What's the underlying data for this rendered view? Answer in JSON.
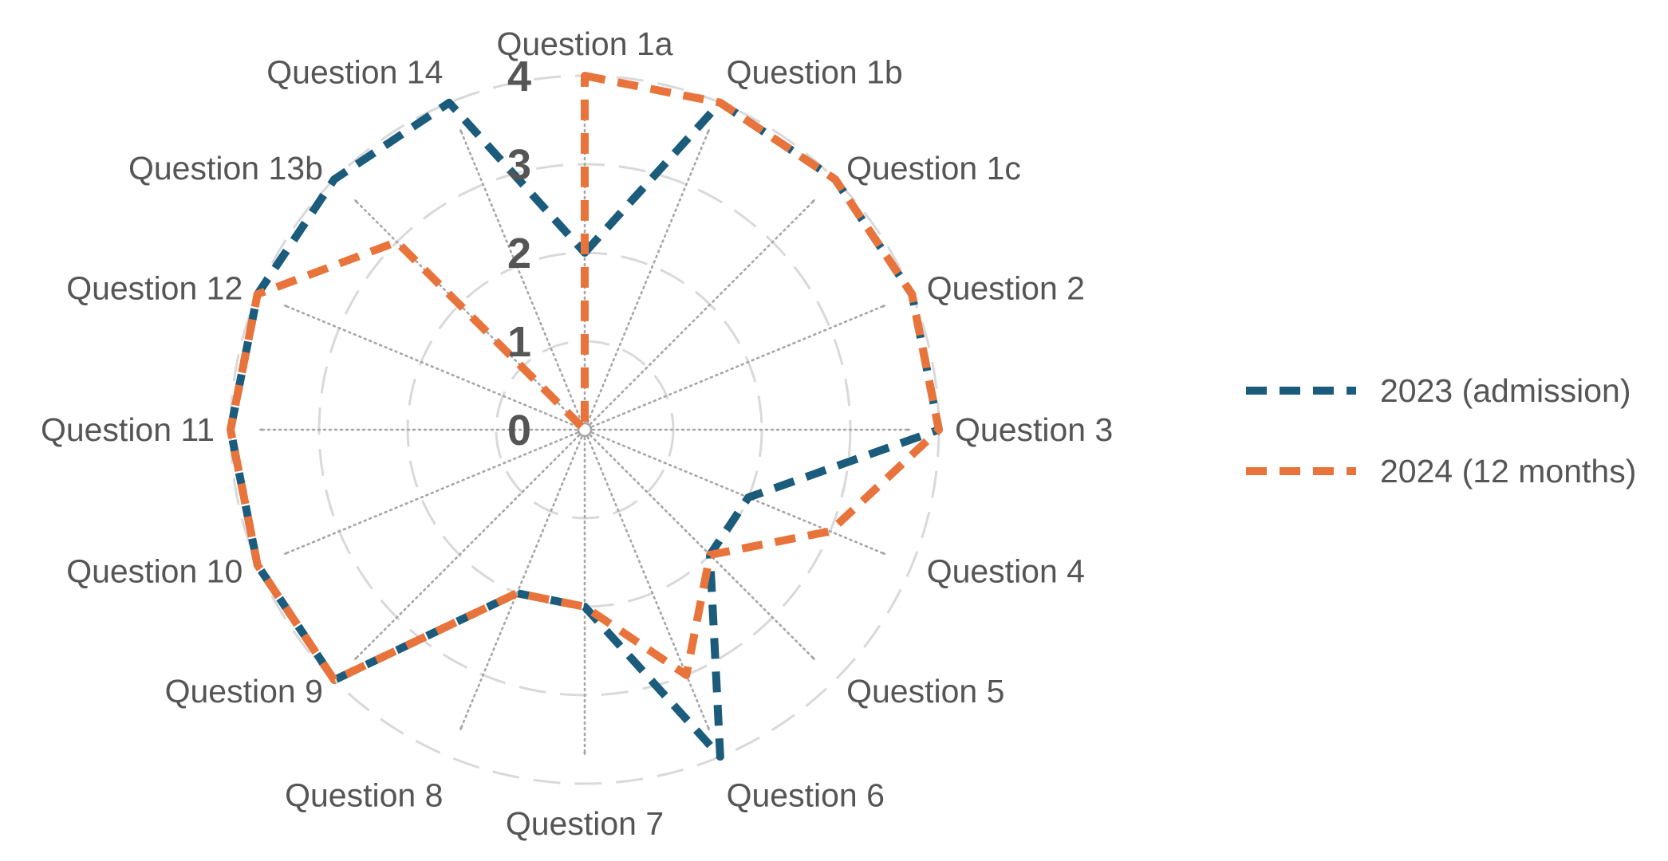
{
  "chart_data": {
    "type": "radar",
    "categories": [
      "Question 1a",
      "Question 1b",
      "Question 1c",
      "Question 2",
      "Question 3",
      "Question 4",
      "Question 5",
      "Question 6",
      "Question 7",
      "Question 8",
      "Question 9",
      "Question 10",
      "Question 11",
      "Question 12",
      "Question 13b",
      "Question 14"
    ],
    "rlim": [
      0,
      4
    ],
    "ticks": [
      "0",
      "1",
      "2",
      "3",
      "4"
    ],
    "grid": true,
    "legend_position": "right",
    "series": [
      {
        "name": "2023 (admission)",
        "color": "#1b5b7b",
        "values": [
          2,
          4,
          4,
          4,
          4,
          2,
          2,
          4,
          2,
          2,
          4,
          4,
          4,
          4,
          4,
          4
        ]
      },
      {
        "name": "2024 (12 months)",
        "color": "#e8743b",
        "values": [
          4,
          4,
          4,
          4,
          4,
          3,
          2,
          3,
          2,
          2,
          4,
          4,
          4,
          4,
          3,
          0
        ]
      }
    ]
  }
}
